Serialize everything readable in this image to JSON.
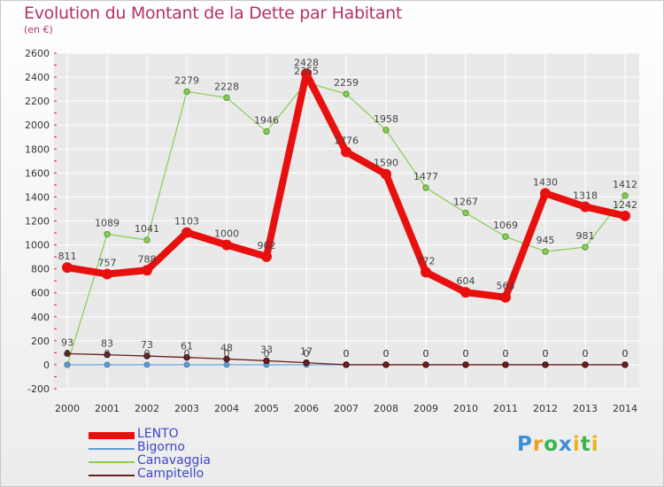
{
  "title": "Evolution du Montant de la Dette par Habitant",
  "subtitle": "(en €)",
  "logo": {
    "letters": [
      "P",
      "r",
      "o",
      "x",
      "i",
      "t",
      "i"
    ],
    "colors": [
      "#3e8fd6",
      "#f0a020",
      "#39b54a",
      "#3e8fd6",
      "#e9b51c",
      "#39b54a",
      "#e9b51c"
    ]
  },
  "chart_data": {
    "type": "line",
    "x": [
      "2000",
      "2001",
      "2002",
      "2003",
      "2004",
      "2005",
      "2006",
      "2007",
      "2008",
      "2009",
      "2010",
      "2011",
      "2012",
      "2013",
      "2014"
    ],
    "ylim": [
      -200,
      2600
    ],
    "yticks": [
      "-200",
      "0",
      "200",
      "400",
      "600",
      "800",
      "1000",
      "1200",
      "1400",
      "1600",
      "1800",
      "2000",
      "2200",
      "2400",
      "2600"
    ],
    "grid": true,
    "legend_position": "bottom-left",
    "series": [
      {
        "name": "LENTO",
        "color": "#e8100f",
        "values": [
          811,
          757,
          788,
          1103,
          1000,
          902,
          2428,
          1776,
          1590,
          772,
          604,
          563,
          1430,
          1318,
          1242
        ],
        "labels": [
          "811",
          "757",
          "788",
          "1103",
          "1000",
          "902",
          "2428",
          "1776",
          "1590",
          "772",
          "604",
          "563",
          "1430",
          "1318",
          "1242"
        ]
      },
      {
        "name": "Bigorno",
        "color": "#5f9bd3",
        "values": [
          0,
          0,
          0,
          0,
          0,
          0,
          0,
          0,
          0,
          0,
          0,
          0,
          0,
          0,
          0
        ],
        "labels": [
          "0",
          "0",
          "0",
          "0",
          "0",
          "0",
          "0",
          "0",
          "0",
          "0",
          "0",
          "0",
          "0",
          "0",
          "0"
        ]
      },
      {
        "name": "Canavaggia",
        "color": "#88cc55",
        "values": [
          0,
          1089,
          1041,
          2279,
          2228,
          1946,
          2355,
          2259,
          1958,
          1477,
          1267,
          1069,
          945,
          981,
          1412
        ],
        "labels": [
          "0",
          "1089",
          "1041",
          "2279",
          "2228",
          "1946",
          "2355",
          "2259",
          "1958",
          "1477",
          "1267",
          "1069",
          "945",
          "981",
          "1412"
        ]
      },
      {
        "name": "Campitello",
        "color": "#6b1f1f",
        "values": [
          93,
          83,
          73,
          61,
          48,
          33,
          17,
          0,
          0,
          0,
          0,
          0,
          0,
          0,
          0
        ],
        "labels": [
          "93",
          "83",
          "73",
          "61",
          "48",
          "33",
          "17",
          "0",
          "0",
          "0",
          "0",
          "0",
          "0",
          "0",
          "0"
        ]
      }
    ]
  }
}
